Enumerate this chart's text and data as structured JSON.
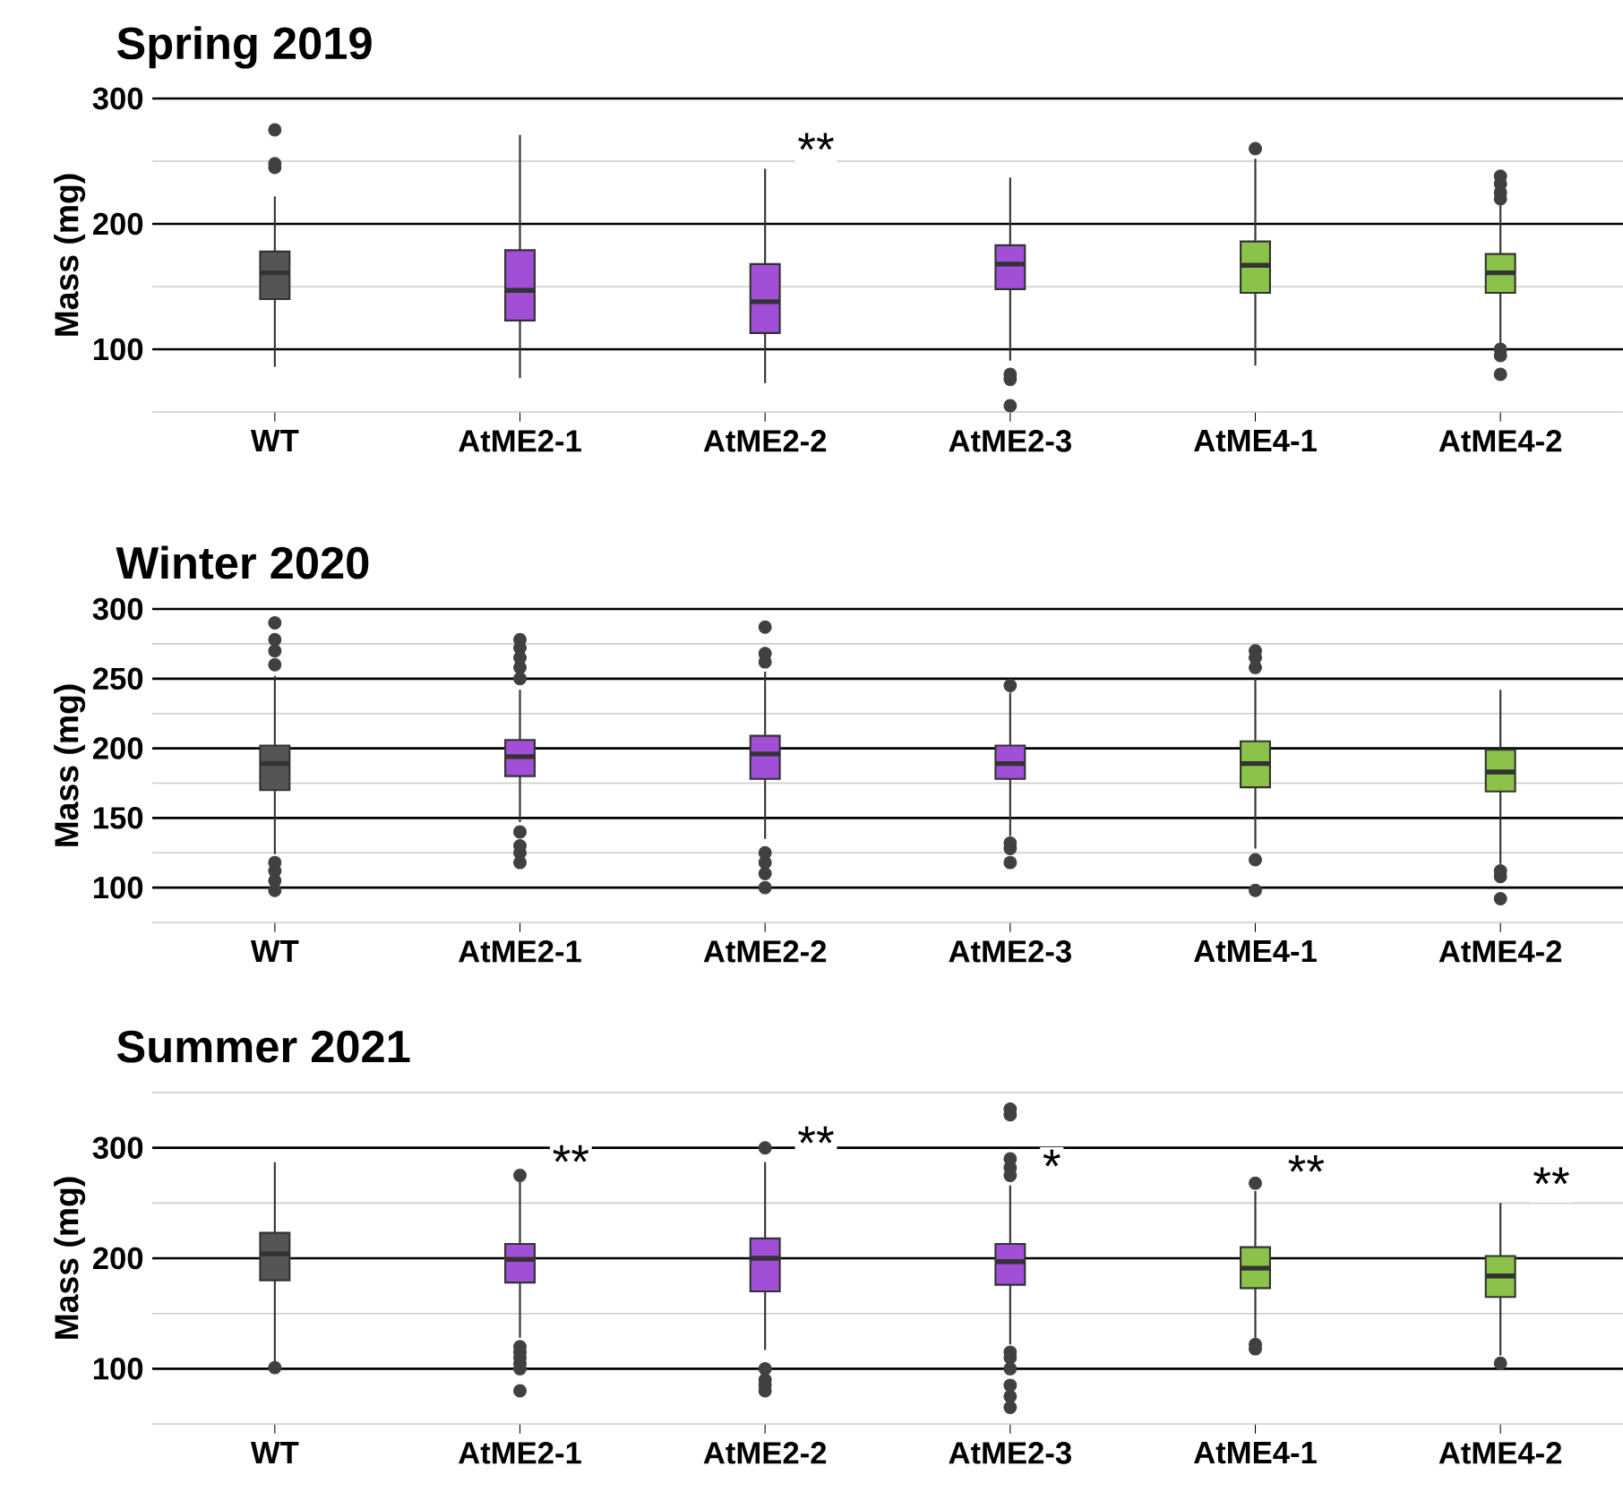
{
  "chart_data": [
    {
      "type": "box",
      "title": "Spring 2019",
      "ylabel": "Mass (mg)",
      "categories": [
        "WT",
        "AtME2-1",
        "AtME2-2",
        "AtME2-3",
        "AtME4-1",
        "AtME4-2"
      ],
      "colors": [
        "#555555",
        "#a04fd6",
        "#a04fd6",
        "#a04fd6",
        "#8bc34a",
        "#8bc34a"
      ],
      "grid": true,
      "ylim": [
        50,
        300
      ],
      "yticks": [
        {
          "value": 50,
          "label": null
        },
        100,
        {
          "value": 150,
          "label": null
        },
        200,
        {
          "value": 250,
          "label": null
        },
        300
      ],
      "boxes": [
        {
          "low": 86,
          "q1": 140,
          "median": 161,
          "q3": 178,
          "high": 222,
          "outliers": [
            245,
            248,
            275
          ]
        },
        {
          "low": 77,
          "q1": 123,
          "median": 147,
          "q3": 179,
          "high": 271
        },
        {
          "low": 73,
          "q1": 113,
          "median": 138,
          "q3": 168,
          "high": 244
        },
        {
          "low": 91,
          "q1": 148,
          "median": 168,
          "q3": 183,
          "high": 237,
          "outliers": [
            80,
            76,
            55
          ]
        },
        {
          "low": 87,
          "q1": 145,
          "median": 167,
          "q3": 186,
          "high": 252,
          "outliers": [
            260
          ]
        },
        {
          "low": 105,
          "q1": 145,
          "median": 161,
          "q3": 176,
          "high": 215,
          "outliers": [
            220,
            225,
            232,
            238,
            100,
            95,
            80
          ]
        }
      ],
      "annotations": [
        {
          "text": "**",
          "x": "AtME2-2",
          "y": 244
        }
      ]
    },
    {
      "type": "box",
      "title": "Winter 2020",
      "ylabel": "Mass (mg)",
      "categories": [
        "WT",
        "AtME2-1",
        "AtME2-2",
        "AtME2-3",
        "AtME4-1",
        "AtME4-2"
      ],
      "colors": [
        "#555555",
        "#a04fd6",
        "#a04fd6",
        "#a04fd6",
        "#8bc34a",
        "#8bc34a"
      ],
      "grid": true,
      "ylim": [
        75,
        300
      ],
      "yticks": [
        {
          "value": 75,
          "label": null
        },
        100,
        {
          "value": 125,
          "label": null
        },
        150,
        {
          "value": 175,
          "label": null
        },
        200,
        {
          "value": 225,
          "label": null
        },
        250,
        {
          "value": 275,
          "label": null
        },
        300
      ],
      "boxes": [
        {
          "low": 124,
          "q1": 170,
          "median": 189,
          "q3": 202,
          "high": 252,
          "outliers": [
            260,
            270,
            278,
            290,
            118,
            112,
            105,
            98
          ]
        },
        {
          "low": 147,
          "q1": 180,
          "median": 194,
          "q3": 206,
          "high": 242,
          "outliers": [
            250,
            258,
            265,
            272,
            278,
            140,
            130,
            125,
            118
          ]
        },
        {
          "low": 135,
          "q1": 178,
          "median": 196,
          "q3": 209,
          "high": 255,
          "outliers": [
            262,
            268,
            287,
            125,
            118,
            110,
            100
          ]
        },
        {
          "low": 137,
          "q1": 178,
          "median": 189,
          "q3": 202,
          "high": 240,
          "outliers": [
            245,
            132,
            128,
            118
          ]
        },
        {
          "low": 128,
          "q1": 172,
          "median": 189,
          "q3": 205,
          "high": 250,
          "outliers": [
            258,
            265,
            270,
            120,
            98
          ]
        },
        {
          "low": 117,
          "q1": 169,
          "median": 183,
          "q3": 199,
          "high": 242,
          "outliers": [
            112,
            108,
            92
          ]
        }
      ]
    },
    {
      "type": "box",
      "title": "Summer 2021",
      "ylabel": "Mass (mg)",
      "categories": [
        "WT",
        "AtME2-1",
        "AtME2-2",
        "AtME2-3",
        "AtME4-1",
        "AtME4-2"
      ],
      "colors": [
        "#555555",
        "#a04fd6",
        "#a04fd6",
        "#a04fd6",
        "#8bc34a",
        "#8bc34a"
      ],
      "grid": true,
      "ylim": [
        50,
        350
      ],
      "yticks": [
        {
          "value": 50,
          "label": null
        },
        100,
        {
          "value": 150,
          "label": null
        },
        200,
        {
          "value": 250,
          "label": null
        },
        300,
        {
          "value": 350,
          "label": null
        }
      ],
      "boxes": [
        {
          "low": 106,
          "q1": 180,
          "median": 204,
          "q3": 223,
          "high": 287,
          "outliers": [
            101
          ]
        },
        {
          "low": 128,
          "q1": 178,
          "median": 199,
          "q3": 213,
          "high": 270,
          "outliers": [
            275,
            120,
            115,
            110,
            105,
            100,
            80
          ]
        },
        {
          "low": 117,
          "q1": 170,
          "median": 200,
          "q3": 218,
          "high": 287,
          "outliers": [
            300,
            100,
            90,
            85,
            80
          ]
        },
        {
          "low": 122,
          "q1": 176,
          "median": 197,
          "q3": 213,
          "high": 266,
          "outliers": [
            275,
            282,
            290,
            330,
            335,
            115,
            110,
            100,
            85,
            75,
            65
          ]
        },
        {
          "low": 128,
          "q1": 173,
          "median": 191,
          "q3": 210,
          "high": 261,
          "outliers": [
            268,
            122,
            118
          ]
        },
        {
          "low": 112,
          "q1": 165,
          "median": 184,
          "q3": 202,
          "high": 250,
          "outliers": [
            105
          ]
        }
      ],
      "annotations": [
        {
          "text": "**",
          "x": "AtME2-1",
          "y": 270
        },
        {
          "text": "**",
          "x": "AtME2-2",
          "y": 287
        },
        {
          "text": "*",
          "x": "AtME2-3",
          "y": 266
        },
        {
          "text": "**",
          "x": "AtME4-1",
          "y": 261
        },
        {
          "text": "**",
          "x": "AtME4-2",
          "y": 250
        }
      ]
    }
  ]
}
